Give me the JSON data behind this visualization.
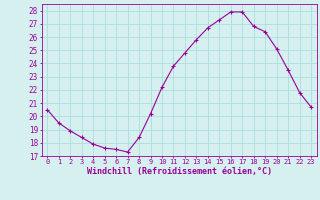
{
  "x": [
    0,
    1,
    2,
    3,
    4,
    5,
    6,
    7,
    8,
    9,
    10,
    11,
    12,
    13,
    14,
    15,
    16,
    17,
    18,
    19,
    20,
    21,
    22,
    23
  ],
  "y": [
    20.5,
    19.5,
    18.9,
    18.4,
    17.9,
    17.6,
    17.5,
    17.3,
    18.4,
    20.2,
    22.2,
    23.8,
    24.8,
    25.8,
    26.7,
    27.3,
    27.9,
    27.9,
    26.8,
    26.4,
    25.1,
    23.5,
    21.8,
    20.7
  ],
  "line_color": "#990099",
  "marker": "+",
  "marker_size": 3,
  "bg_color": "#d6f0f0",
  "grid_color": "#aadddd",
  "xlabel": "Windchill (Refroidissement éolien,°C)",
  "xlabel_color": "#990099",
  "tick_color": "#990099",
  "ylim": [
    17,
    28.5
  ],
  "yticks": [
    17,
    18,
    19,
    20,
    21,
    22,
    23,
    24,
    25,
    26,
    27,
    28
  ],
  "xlim": [
    -0.5,
    23.5
  ],
  "xticks": [
    0,
    1,
    2,
    3,
    4,
    5,
    6,
    7,
    8,
    9,
    10,
    11,
    12,
    13,
    14,
    15,
    16,
    17,
    18,
    19,
    20,
    21,
    22,
    23
  ],
  "spine_color": "#990099",
  "line_width": 0.8
}
